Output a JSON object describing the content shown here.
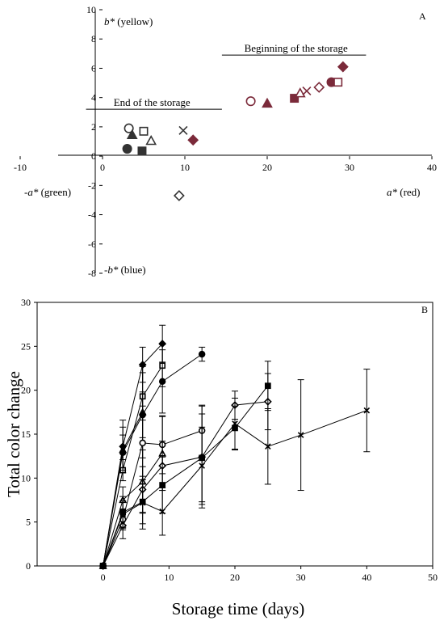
{
  "colors": {
    "marker_maroon": "#7b2a3a",
    "marker_dark": "#333333",
    "line": "#000000"
  },
  "chart_data": [
    {
      "type": "scatter",
      "panel_label": "A",
      "xlim": [
        -10,
        40
      ],
      "ylim": [
        -8,
        10
      ],
      "xticks": [
        -10,
        0,
        10,
        20,
        30,
        40
      ],
      "yticks": [
        -8,
        -6,
        -4,
        -2,
        0,
        2,
        4,
        6,
        8,
        10
      ],
      "axis_labels": {
        "pos_y_prefix": "b*",
        "pos_y_word": " (yellow)",
        "neg_y_prefix": "-b*",
        "neg_y_word": " (blue)",
        "neg_x_prefix": "-a*",
        "neg_x_word": " (green)",
        "pos_x_prefix": "a*",
        "pos_x_word": " (red)"
      },
      "annotations": [
        {
          "text": "Beginning of the storage",
          "x": 23.5,
          "y": 6.9,
          "line": [
            14.5,
            32
          ]
        },
        {
          "text": "End of the storage",
          "x": 6,
          "y": 3.2,
          "line": [
            -2,
            14.5
          ]
        }
      ],
      "points": [
        {
          "group": "end",
          "marker": "circle-open",
          "color": "#333333",
          "a": 3.2,
          "b": 1.9
        },
        {
          "group": "end",
          "marker": "triangle-filled",
          "color": "#333333",
          "a": 3.6,
          "b": 1.45
        },
        {
          "group": "end",
          "marker": "square-open",
          "color": "#333333",
          "a": 5.0,
          "b": 1.7
        },
        {
          "group": "end",
          "marker": "triangle-open",
          "color": "#333333",
          "a": 5.9,
          "b": 1.05
        },
        {
          "group": "end",
          "marker": "circle-filled",
          "color": "#333333",
          "a": 3.0,
          "b": 0.5
        },
        {
          "group": "end",
          "marker": "square-filled",
          "color": "#333333",
          "a": 4.8,
          "b": 0.35
        },
        {
          "group": "end",
          "marker": "cross",
          "color": "#333333",
          "a": 9.8,
          "b": 1.75
        },
        {
          "group": "end",
          "marker": "diamond-filled",
          "color": "#7b2a3a",
          "a": 11.0,
          "b": 1.1
        },
        {
          "group": "end",
          "marker": "diamond-open",
          "color": "#333333",
          "a": 9.3,
          "b": -2.7
        },
        {
          "group": "beginning",
          "marker": "circle-open",
          "color": "#7b2a3a",
          "a": 18.0,
          "b": 3.75
        },
        {
          "group": "beginning",
          "marker": "triangle-filled",
          "color": "#7b2a3a",
          "a": 20.0,
          "b": 3.6
        },
        {
          "group": "beginning",
          "marker": "square-filled",
          "color": "#7b2a3a",
          "a": 23.3,
          "b": 3.95
        },
        {
          "group": "beginning",
          "marker": "triangle-open",
          "color": "#7b2a3a",
          "a": 24.0,
          "b": 4.3
        },
        {
          "group": "beginning",
          "marker": "cross",
          "color": "#7b2a3a",
          "a": 24.8,
          "b": 4.45
        },
        {
          "group": "beginning",
          "marker": "diamond-open",
          "color": "#7b2a3a",
          "a": 26.3,
          "b": 4.7
        },
        {
          "group": "beginning",
          "marker": "circle-filled",
          "color": "#7b2a3a",
          "a": 27.8,
          "b": 5.05
        },
        {
          "group": "beginning",
          "marker": "square-open",
          "color": "#7b2a3a",
          "a": 28.6,
          "b": 5.05
        },
        {
          "group": "beginning",
          "marker": "diamond-filled",
          "color": "#7b2a3a",
          "a": 29.2,
          "b": 6.1
        }
      ]
    },
    {
      "type": "line",
      "panel_label": "B",
      "xlabel": "Storage time (days)",
      "ylabel": "Total color change",
      "xlim": [
        -10,
        50
      ],
      "ylim": [
        0,
        30
      ],
      "xticks": [
        0,
        10,
        20,
        30,
        40,
        50
      ],
      "yticks": [
        0,
        5,
        10,
        15,
        20,
        25,
        30
      ],
      "series": [
        {
          "marker": "diamond-filled",
          "x": [
            0,
            3,
            6,
            9
          ],
          "y": [
            0,
            13.6,
            22.9,
            25.3
          ],
          "err": [
            0,
            3.0,
            2.0,
            2.1
          ]
        },
        {
          "marker": "square-open",
          "x": [
            0,
            3,
            6,
            9
          ],
          "y": [
            0,
            10.9,
            19.3,
            22.8
          ],
          "err": [
            0,
            1.2,
            2.7,
            2.4
          ]
        },
        {
          "marker": "circle-filled",
          "x": [
            0,
            3,
            6,
            9,
            15
          ],
          "y": [
            0,
            12.9,
            17.2,
            21.0,
            24.1
          ],
          "err": [
            0,
            2.0,
            2.6,
            3.6,
            0.8
          ]
        },
        {
          "marker": "triangle-filled",
          "x": [
            0,
            3,
            6
          ],
          "y": [
            0,
            13.2,
            17.5
          ],
          "err": [
            0,
            2.6,
            5.2
          ]
        },
        {
          "marker": "circle-open",
          "x": [
            0,
            3,
            6,
            9,
            15
          ],
          "y": [
            0,
            5.3,
            14.0,
            13.8,
            15.4
          ],
          "err": [
            0,
            1.2,
            4.2,
            3.3,
            2.9
          ]
        },
        {
          "marker": "triangle-open",
          "x": [
            0,
            3,
            6,
            9
          ],
          "y": [
            0,
            7.5,
            9.6,
            12.8
          ],
          "err": [
            0,
            1.5,
            3.6,
            4.2
          ]
        },
        {
          "marker": "diamond-open",
          "x": [
            0,
            3,
            6,
            9,
            15,
            20,
            25
          ],
          "y": [
            0,
            4.6,
            8.7,
            11.4,
            12.4,
            18.3,
            18.7
          ],
          "err": [
            0,
            1.5,
            2.6,
            2.8,
            5.8,
            1.6,
            3.2
          ]
        },
        {
          "marker": "square-filled",
          "x": [
            0,
            3,
            6,
            9,
            15,
            20,
            25
          ],
          "y": [
            0,
            6.1,
            7.3,
            9.2,
            12.3,
            15.7,
            20.5
          ],
          "err": [
            0,
            1.8,
            2.5,
            3.2,
            5.0,
            2.5,
            2.8
          ]
        },
        {
          "marker": "cross",
          "x": [
            0,
            3,
            6,
            9,
            15,
            20,
            25,
            30,
            40
          ],
          "y": [
            0,
            5.9,
            7.2,
            6.2,
            11.4,
            16.2,
            13.6,
            14.9,
            17.7
          ],
          "err": [
            0,
            1.5,
            3.0,
            2.7,
            4.4,
            2.9,
            4.3,
            6.3,
            4.7
          ]
        }
      ]
    }
  ]
}
